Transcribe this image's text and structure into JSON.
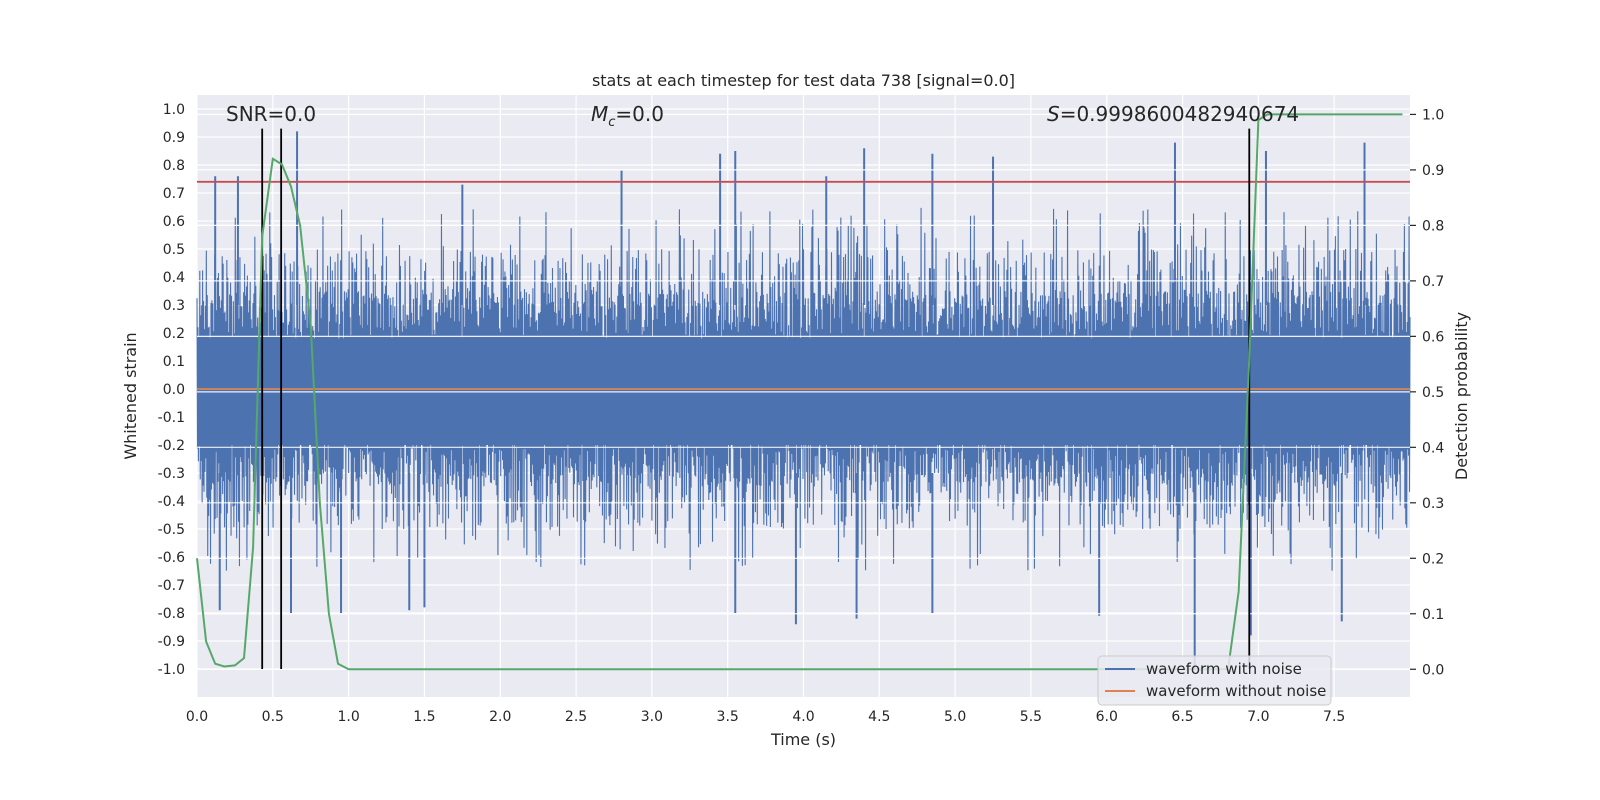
{
  "chart_data": {
    "type": "line",
    "title": "stats at each timestep for test data 738 [signal=0.0]",
    "xlabel": "Time (s)",
    "ylabel_left": "Whitened strain",
    "ylabel_right": "Detection probability",
    "xlim": [
      0.0,
      8.0
    ],
    "ylim_left": [
      -1.1,
      1.05
    ],
    "ylim_right": [
      -0.05,
      1.035
    ],
    "x_ticks": [
      "0.0",
      "0.5",
      "1.0",
      "1.5",
      "2.0",
      "2.5",
      "3.0",
      "3.5",
      "4.0",
      "4.5",
      "5.0",
      "5.5",
      "6.0",
      "6.5",
      "7.0",
      "7.5"
    ],
    "y_left_ticks": [
      "1.0",
      "0.9",
      "0.8",
      "0.7",
      "0.6",
      "0.5",
      "0.4",
      "0.3",
      "0.2",
      "0.1",
      "0.0",
      "-0.1",
      "-0.2",
      "-0.3",
      "-0.4",
      "-0.5",
      "-0.6",
      "-0.7",
      "-0.8",
      "-0.9",
      "-1.0"
    ],
    "y_right_ticks": [
      "1.0",
      "0.9",
      "0.8",
      "0.7",
      "0.6",
      "0.5",
      "0.4",
      "0.3",
      "0.2",
      "0.1",
      "0.0"
    ],
    "grid": true,
    "annotations": {
      "snr": "SNR=0.0",
      "mc_symbol": "M",
      "mc_sub": "c",
      "mc_value": "=0.0",
      "s_symbol": "S",
      "s_value": "=0.9998600482940674"
    },
    "threshold_left": 0.74,
    "vertical_lines_x": [
      0.43,
      0.555,
      6.94
    ],
    "vertical_lines_range": [
      -1.0,
      0.93
    ],
    "noise_envelope": {
      "upper_typical": 0.45,
      "lower_typical": -0.45,
      "upper_peaks": [
        [
          0.12,
          0.76
        ],
        [
          0.27,
          0.76
        ],
        [
          0.66,
          0.92
        ],
        [
          1.75,
          0.73
        ],
        [
          2.8,
          0.78
        ],
        [
          3.45,
          0.84
        ],
        [
          3.55,
          0.85
        ],
        [
          4.15,
          0.76
        ],
        [
          4.4,
          0.86
        ],
        [
          4.85,
          0.84
        ],
        [
          5.25,
          0.83
        ],
        [
          6.45,
          0.88
        ],
        [
          7.05,
          0.85
        ],
        [
          7.7,
          0.88
        ]
      ],
      "lower_peaks": [
        [
          0.15,
          -0.79
        ],
        [
          0.62,
          -0.8
        ],
        [
          0.95,
          -0.8
        ],
        [
          1.4,
          -0.79
        ],
        [
          1.5,
          -0.78
        ],
        [
          3.55,
          -0.8
        ],
        [
          3.95,
          -0.84
        ],
        [
          4.35,
          -0.82
        ],
        [
          4.85,
          -0.8
        ],
        [
          5.95,
          -0.81
        ],
        [
          6.58,
          -1.0
        ],
        [
          6.95,
          -0.88
        ],
        [
          7.55,
          -0.83
        ]
      ]
    },
    "series": [
      {
        "name": "waveform with noise",
        "color": "#4c72b0",
        "axis": "left"
      },
      {
        "name": "waveform without noise",
        "color": "#dd8452",
        "axis": "left",
        "x": [
          0.0,
          8.0
        ],
        "y": [
          0.0,
          0.0
        ]
      },
      {
        "name": "detection probability",
        "color": "#55a868",
        "axis": "right",
        "x": [
          0.0,
          0.06,
          0.12,
          0.18,
          0.25,
          0.31,
          0.37,
          0.43,
          0.5,
          0.56,
          0.62,
          0.68,
          0.75,
          0.81,
          0.87,
          0.93,
          1.0,
          1.1,
          6.8,
          6.87,
          6.94,
          7.0,
          7.06,
          7.5,
          7.95
        ],
        "y": [
          0.2,
          0.05,
          0.01,
          0.005,
          0.007,
          0.02,
          0.22,
          0.78,
          0.92,
          0.91,
          0.87,
          0.8,
          0.62,
          0.3,
          0.1,
          0.01,
          0.0,
          0.0,
          0.0,
          0.14,
          0.56,
          0.99,
          1.0,
          1.0,
          1.0
        ]
      }
    ],
    "legend": {
      "placement": "lower-right",
      "entries": [
        "waveform with noise",
        "waveform without noise"
      ]
    },
    "colors": {
      "threshold": "#c44e52",
      "markers": "#000000",
      "background": "#eaeaf2",
      "grid": "#ffffff"
    }
  }
}
